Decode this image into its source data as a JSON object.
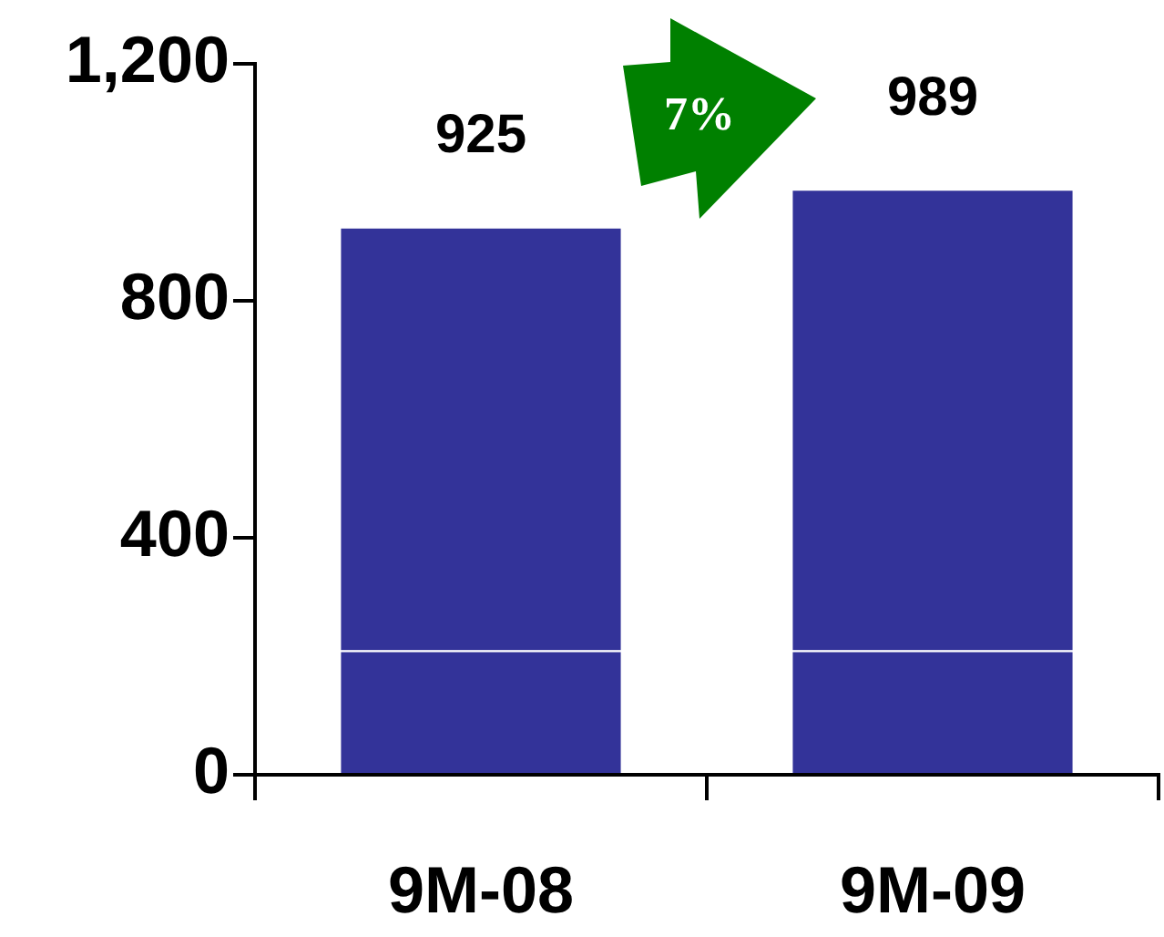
{
  "chart_data": {
    "type": "bar",
    "stacked": true,
    "categories": [
      "9M-08",
      "9M-09"
    ],
    "series": [
      {
        "color": "#333399",
        "values": [
          210,
          210
        ]
      },
      {
        "color": "#333399",
        "values": [
          715,
          779
        ]
      }
    ],
    "totals": [
      "925",
      "989"
    ],
    "ylim": [
      0,
      1200
    ],
    "yticks": [
      0,
      {
        "value": 400,
        "label": "400"
      },
      {
        "value": 800,
        "label": "800"
      },
      {
        "value": 1200,
        "label": "1,200"
      }
    ],
    "annotations": [
      "7%"
    ]
  }
}
